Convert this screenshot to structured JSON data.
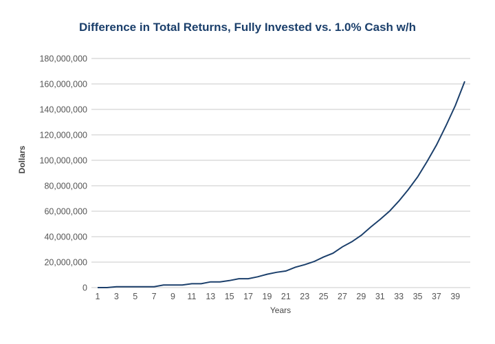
{
  "chart_data": {
    "type": "line",
    "title": "Difference in Total Returns, Fully Invested vs. 1.0% Cash w/h",
    "xlabel": "Years",
    "ylabel": "Dollars",
    "ylim": [
      0,
      180000000
    ],
    "yticks": [
      "0",
      "20,000,000",
      "40,000,000",
      "60,000,000",
      "80,000,000",
      "100,000,000",
      "120,000,000",
      "140,000,000",
      "160,000,000",
      "180,000,000"
    ],
    "xticks": [
      "1",
      "3",
      "5",
      "7",
      "9",
      "11",
      "13",
      "15",
      "17",
      "19",
      "21",
      "23",
      "25",
      "27",
      "29",
      "31",
      "33",
      "35",
      "37",
      "39"
    ],
    "grid": true,
    "line_color": "#1b3f6b",
    "x": [
      1,
      2,
      3,
      4,
      5,
      6,
      7,
      8,
      9,
      10,
      11,
      12,
      13,
      14,
      15,
      16,
      17,
      18,
      19,
      20,
      21,
      22,
      23,
      24,
      25,
      26,
      27,
      28,
      29,
      30,
      31,
      32,
      33,
      34,
      35,
      36,
      37,
      38,
      39,
      40
    ],
    "values": [
      0,
      0,
      700000,
      700000,
      700000,
      700000,
      700000,
      2000000,
      2000000,
      2000000,
      3000000,
      3000000,
      4500000,
      4500000,
      5500000,
      7000000,
      7000000,
      8500000,
      10500000,
      12000000,
      13000000,
      16000000,
      18000000,
      20500000,
      24000000,
      27000000,
      32000000,
      36000000,
      41000000,
      47500000,
      53500000,
      60000000,
      68000000,
      77000000,
      87000000,
      99000000,
      112000000,
      127000000,
      143000000,
      162000000
    ]
  }
}
